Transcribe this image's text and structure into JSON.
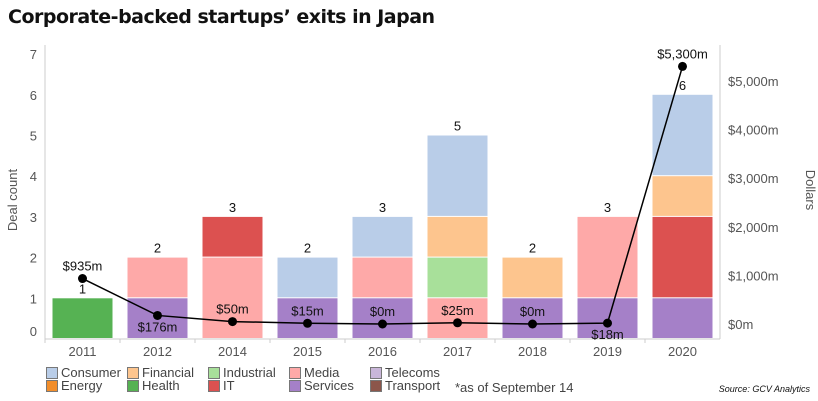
{
  "chart_data": {
    "type": "bar",
    "title": "Corporate-backed startups’ exits in Japan",
    "ylabel": "Deal count",
    "y2label": "Dollars",
    "ylim": [
      0,
      7
    ],
    "y2lim": [
      0,
      5800
    ],
    "yticks": [
      "0",
      "1",
      "2",
      "3",
      "4",
      "5",
      "6",
      "7"
    ],
    "y2ticks": [
      "$0m",
      "$1,000m",
      "$2,000m",
      "$3,000m",
      "$4,000m",
      "$5,000m"
    ],
    "y2tick_values": [
      0,
      1000,
      2000,
      3000,
      4000,
      5000
    ],
    "categories": [
      "2011",
      "2012",
      "2014",
      "2015",
      "2016",
      "2017",
      "2018",
      "2019",
      "2020"
    ],
    "series": [
      {
        "name": "Services",
        "color": "#a580c8",
        "values": [
          0,
          1,
          0,
          1,
          1,
          0,
          1,
          1,
          1
        ]
      },
      {
        "name": "Health",
        "color": "#56b253",
        "values": [
          1,
          0,
          0,
          0,
          0,
          0,
          0,
          0,
          0
        ]
      },
      {
        "name": "Media",
        "color": "#fea9a8",
        "values": [
          0,
          1,
          2,
          0,
          1,
          1,
          0,
          2,
          0
        ]
      },
      {
        "name": "IT",
        "color": "#dc5150",
        "values": [
          0,
          0,
          1,
          0,
          0,
          0,
          0,
          0,
          2
        ]
      },
      {
        "name": "Industrial",
        "color": "#a8e09a",
        "values": [
          0,
          0,
          0,
          0,
          0,
          1,
          0,
          0,
          0
        ]
      },
      {
        "name": "Financial",
        "color": "#fdc58e",
        "values": [
          0,
          0,
          0,
          0,
          0,
          1,
          1,
          0,
          1
        ]
      },
      {
        "name": "Consumer",
        "color": "#b9cde8",
        "values": [
          0,
          0,
          0,
          1,
          1,
          2,
          0,
          0,
          2
        ]
      }
    ],
    "totals": [
      "1",
      "2",
      "3",
      "2",
      "3",
      "5",
      "2",
      "3",
      "6"
    ],
    "line": {
      "values": [
        935,
        176,
        50,
        15,
        0,
        25,
        0,
        18,
        5300
      ],
      "labels": [
        "$935m",
        "$176m",
        "$50m",
        "$15m",
        "$0m",
        "$25m",
        "$0m",
        "$18m",
        "$5,300m"
      ],
      "color": "#000000"
    },
    "legend": [
      {
        "name": "Consumer",
        "color": "#b9cde8"
      },
      {
        "name": "Energy",
        "color": "#f28e2b"
      },
      {
        "name": "Financial",
        "color": "#fdc58e"
      },
      {
        "name": "Health",
        "color": "#56b253"
      },
      {
        "name": "Industrial",
        "color": "#a8e09a"
      },
      {
        "name": "IT",
        "color": "#dc5150"
      },
      {
        "name": "Media",
        "color": "#fea9a8"
      },
      {
        "name": "Services",
        "color": "#a580c8"
      },
      {
        "name": "Telecoms",
        "color": "#c9b6d9"
      },
      {
        "name": "Transport",
        "color": "#8c564b"
      }
    ],
    "legend_placement": "bottom",
    "note": "*as of September 14",
    "source": "Source: GCV Analytics",
    "grid": false
  }
}
